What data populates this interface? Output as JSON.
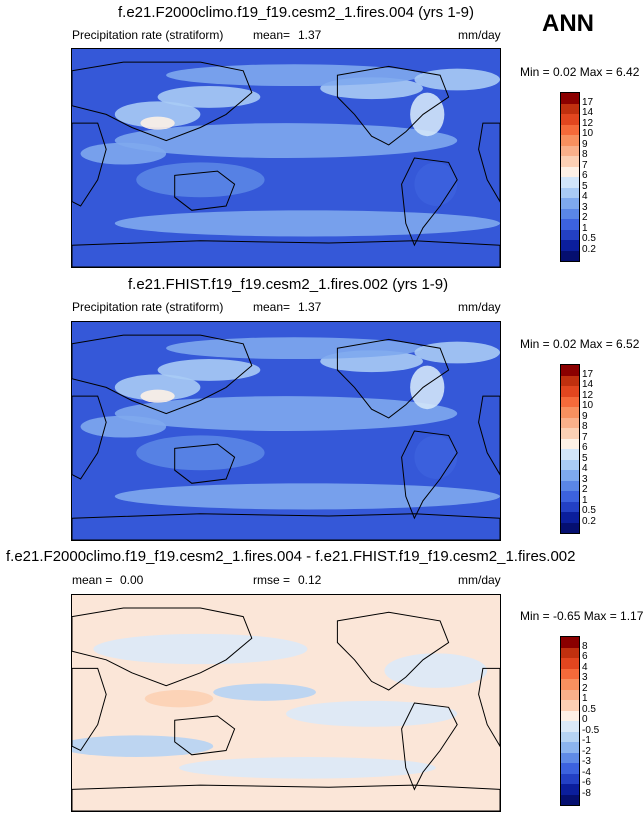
{
  "season": "ANN",
  "panels": [
    {
      "title": "f.e21.F2000climo.f19_f19.cesm2_1.fires.004 (yrs 1-9)",
      "variable": "Precipitation rate (stratiform)",
      "mean_label": "mean=",
      "mean": "1.37",
      "units": "mm/day",
      "minmax": "Min =   0.02 Max =   6.42",
      "levels": [
        "17",
        "14",
        "12",
        "10",
        "9",
        "8",
        "7",
        "6",
        "5",
        "4",
        "3",
        "2",
        "1",
        "0.5",
        "0.2"
      ],
      "colors": [
        "#8b0000",
        "#c0300f",
        "#e2461f",
        "#f56a3a",
        "#f8905f",
        "#fab08a",
        "#fcd0b4",
        "#fdf1e6",
        "#d2e6fa",
        "#a9cbf5",
        "#7ea9ee",
        "#5a86e6",
        "#3c62de",
        "#2340c4",
        "#0b1e9c",
        "#050f70"
      ],
      "base": "#3558d8"
    },
    {
      "title": "f.e21.FHIST.f19_f19.cesm2_1.fires.002 (yrs 1-9)",
      "variable": "Precipitation rate (stratiform)",
      "mean_label": "mean=",
      "mean": "1.37",
      "units": "mm/day",
      "minmax": "Min =   0.02 Max =   6.52",
      "levels": [
        "17",
        "14",
        "12",
        "10",
        "9",
        "8",
        "7",
        "6",
        "5",
        "4",
        "3",
        "2",
        "1",
        "0.5",
        "0.2"
      ],
      "colors": [
        "#8b0000",
        "#c0300f",
        "#e2461f",
        "#f56a3a",
        "#f8905f",
        "#fab08a",
        "#fcd0b4",
        "#fdf1e6",
        "#d2e6fa",
        "#a9cbf5",
        "#7ea9ee",
        "#5a86e6",
        "#3c62de",
        "#2340c4",
        "#0b1e9c",
        "#050f70"
      ],
      "base": "#3558d8"
    },
    {
      "title": "f.e21.F2000climo.f19_f19.cesm2_1.fires.004 - f.e21.FHIST.f19_f19.cesm2_1.fires.002",
      "mean_label": "mean =",
      "mean": "0.00",
      "rmse_label": "rmse =",
      "rmse": "0.12",
      "units": "mm/day",
      "minmax": "Min =  -0.65 Max =   1.17",
      "levels": [
        "8",
        "6",
        "4",
        "3",
        "2",
        "1",
        "0.5",
        "0",
        "-0.5",
        "-1",
        "-2",
        "-3",
        "-4",
        "-6",
        "-8"
      ],
      "colors": [
        "#8b0000",
        "#c0300f",
        "#e2461f",
        "#f56a3a",
        "#f8905f",
        "#fab08a",
        "#fcd0b4",
        "#fdf1e6",
        "#dbe9f8",
        "#b6d3f4",
        "#8cb4ef",
        "#5f8ae6",
        "#3c62de",
        "#2340c4",
        "#0b1e9c",
        "#050f70"
      ],
      "base": "#fbe6d8"
    }
  ],
  "chart_data": [
    {
      "type": "heatmap",
      "title": "f.e21.F2000climo.f19_f19.cesm2_1.fires.004 (yrs 1-9)",
      "variable": "Precipitation rate (stratiform)",
      "units": "mm/day",
      "mean": 1.37,
      "min": 0.02,
      "max": 6.42,
      "contour_levels": [
        0.2,
        0.5,
        1,
        2,
        3,
        4,
        5,
        6,
        7,
        8,
        9,
        10,
        12,
        14,
        17
      ]
    },
    {
      "type": "heatmap",
      "title": "f.e21.FHIST.f19_f19.cesm2_1.fires.002 (yrs 1-9)",
      "variable": "Precipitation rate (stratiform)",
      "units": "mm/day",
      "mean": 1.37,
      "min": 0.02,
      "max": 6.52,
      "contour_levels": [
        0.2,
        0.5,
        1,
        2,
        3,
        4,
        5,
        6,
        7,
        8,
        9,
        10,
        12,
        14,
        17
      ]
    },
    {
      "type": "heatmap",
      "title": "f.e21.F2000climo.f19_f19.cesm2_1.fires.004 - f.e21.FHIST.f19_f19.cesm2_1.fires.002",
      "units": "mm/day",
      "mean": 0.0,
      "rmse": 0.12,
      "min": -0.65,
      "max": 1.17,
      "contour_levels": [
        -8,
        -6,
        -4,
        -3,
        -2,
        -1,
        -0.5,
        0,
        0.5,
        1,
        2,
        3,
        4,
        6,
        8
      ]
    }
  ]
}
